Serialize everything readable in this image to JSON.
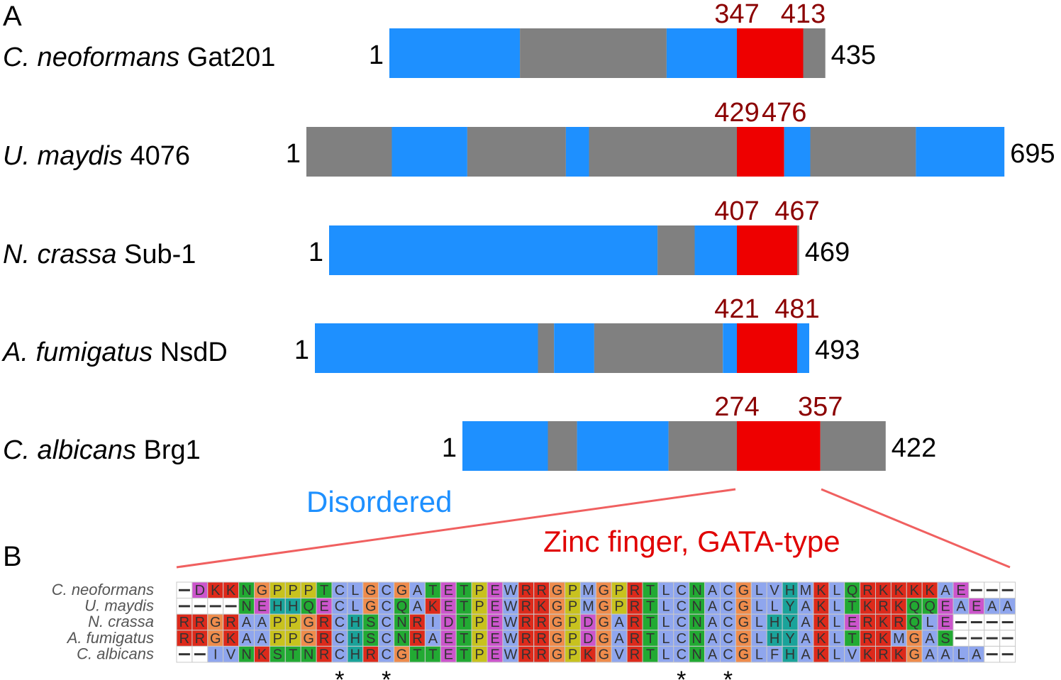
{
  "panels": {
    "a": "A",
    "b": "B"
  },
  "colors": {
    "disordered": "#1e90ff",
    "other": "#808080",
    "zinc_finger": "#ee0000",
    "domain_numbers": "#8b0000",
    "connector": "#f06060"
  },
  "legend": {
    "disordered": "Disordered",
    "zinc_finger": "Zinc finger, GATA-type"
  },
  "proteins": [
    {
      "species": "C. neoformans",
      "protein": "Gat201",
      "start_label": "1",
      "length": 435,
      "length_label": "435",
      "zf_start": 347,
      "zf_start_label": "347",
      "zf_end": 413,
      "zf_end_label": "413",
      "segments": [
        {
          "type": "disordered",
          "from": 1,
          "to": 131
        },
        {
          "type": "other",
          "from": 131,
          "to": 277
        },
        {
          "type": "disordered",
          "from": 277,
          "to": 347
        },
        {
          "type": "zinc_finger",
          "from": 347,
          "to": 413
        },
        {
          "type": "other",
          "from": 413,
          "to": 435
        }
      ]
    },
    {
      "species": "U. maydis",
      "protein": "4076",
      "start_label": "1",
      "length": 695,
      "length_label": "695",
      "zf_start": 429,
      "zf_start_label": "429",
      "zf_end": 476,
      "zf_end_label": "476",
      "segments": [
        {
          "type": "other",
          "from": 1,
          "to": 86
        },
        {
          "type": "disordered",
          "from": 86,
          "to": 161
        },
        {
          "type": "other",
          "from": 161,
          "to": 259
        },
        {
          "type": "disordered",
          "from": 259,
          "to": 282
        },
        {
          "type": "other",
          "from": 282,
          "to": 429
        },
        {
          "type": "zinc_finger",
          "from": 429,
          "to": 476
        },
        {
          "type": "disordered",
          "from": 476,
          "to": 502
        },
        {
          "type": "other",
          "from": 502,
          "to": 607
        },
        {
          "type": "disordered",
          "from": 607,
          "to": 695
        }
      ]
    },
    {
      "species": "N. crassa",
      "protein": "Sub-1",
      "start_label": "1",
      "length": 469,
      "length_label": "469",
      "zf_start": 407,
      "zf_start_label": "407",
      "zf_end": 467,
      "zf_end_label": "467",
      "segments": [
        {
          "type": "disordered",
          "from": 1,
          "to": 328
        },
        {
          "type": "other",
          "from": 328,
          "to": 365
        },
        {
          "type": "disordered",
          "from": 365,
          "to": 407
        },
        {
          "type": "zinc_finger",
          "from": 407,
          "to": 467
        },
        {
          "type": "other",
          "from": 467,
          "to": 469
        }
      ]
    },
    {
      "species": "A. fumigatus",
      "protein": "NsdD",
      "start_label": "1",
      "length": 493,
      "length_label": "493",
      "zf_start": 421,
      "zf_start_label": "421",
      "zf_end": 481,
      "zf_end_label": "481",
      "segments": [
        {
          "type": "disordered",
          "from": 1,
          "to": 223
        },
        {
          "type": "other",
          "from": 223,
          "to": 239
        },
        {
          "type": "disordered",
          "from": 239,
          "to": 279
        },
        {
          "type": "other",
          "from": 279,
          "to": 407
        },
        {
          "type": "disordered",
          "from": 407,
          "to": 421
        },
        {
          "type": "zinc_finger",
          "from": 421,
          "to": 481
        },
        {
          "type": "disordered",
          "from": 481,
          "to": 493
        }
      ]
    },
    {
      "species": "C. albicans",
      "protein": "Brg1",
      "start_label": "1",
      "length": 422,
      "length_label": "422",
      "zf_start": 274,
      "zf_start_label": "274",
      "zf_end": 357,
      "zf_end_label": "357",
      "segments": [
        {
          "type": "disordered",
          "from": 1,
          "to": 86
        },
        {
          "type": "other",
          "from": 86,
          "to": 115
        },
        {
          "type": "disordered",
          "from": 115,
          "to": 206
        },
        {
          "type": "other",
          "from": 206,
          "to": 274
        },
        {
          "type": "zinc_finger",
          "from": 274,
          "to": 357
        },
        {
          "type": "other",
          "from": 357,
          "to": 422
        }
      ]
    }
  ],
  "alignment": {
    "names": [
      "C. neoformans",
      "U. maydis",
      "N. crassa",
      "A. fumigatus",
      "C. albicans"
    ],
    "sequences": [
      "-DKKNGPPPTCLGCGATETPEWRRGPMGPRTLCNACGLVHMKLQRKKKKAE---",
      "----NEHHQECLGCQAKETPEWRKGPMGPRTLCNACGLLYAKLTKRKQQEAEAA",
      "RRGRAAPPGRCHSCNRIDTPEWRRGPDGARTLCNACGLHYAKLERKRQLE----",
      "RRGKAAPPGRCHSCNRAETPEWRRGPDGARTLCNACGLHYAKLTRKMGAS----",
      "--IVNKSTNRCHRCGTTETPEWRRGPKGVRTLCNACGLFHAKLVKRKGAALA--"
    ],
    "conserved_marks": [
      "*",
      "*",
      "*",
      "*"
    ],
    "residue_colors": {
      "K": "#dd2a1b",
      "R": "#dd2a1b",
      "N": "#22aa33",
      "S": "#22aa33",
      "T": "#22aa33",
      "G": "#ef8c4c",
      "P": "#c8c21e",
      "H": "#1aa39a",
      "Y": "#1aa39a",
      "A": "#8fa6ee",
      "C": "#8fa6ee",
      "L": "#8fa6ee",
      "F": "#8fa6ee",
      "W": "#8fa6ee",
      "V": "#8fa6ee",
      "M": "#8fa6ee",
      "I": "#8fa6ee",
      "E": "#cc55cc",
      "D": "#cc55cc",
      "Q": "#22aa33"
    }
  }
}
